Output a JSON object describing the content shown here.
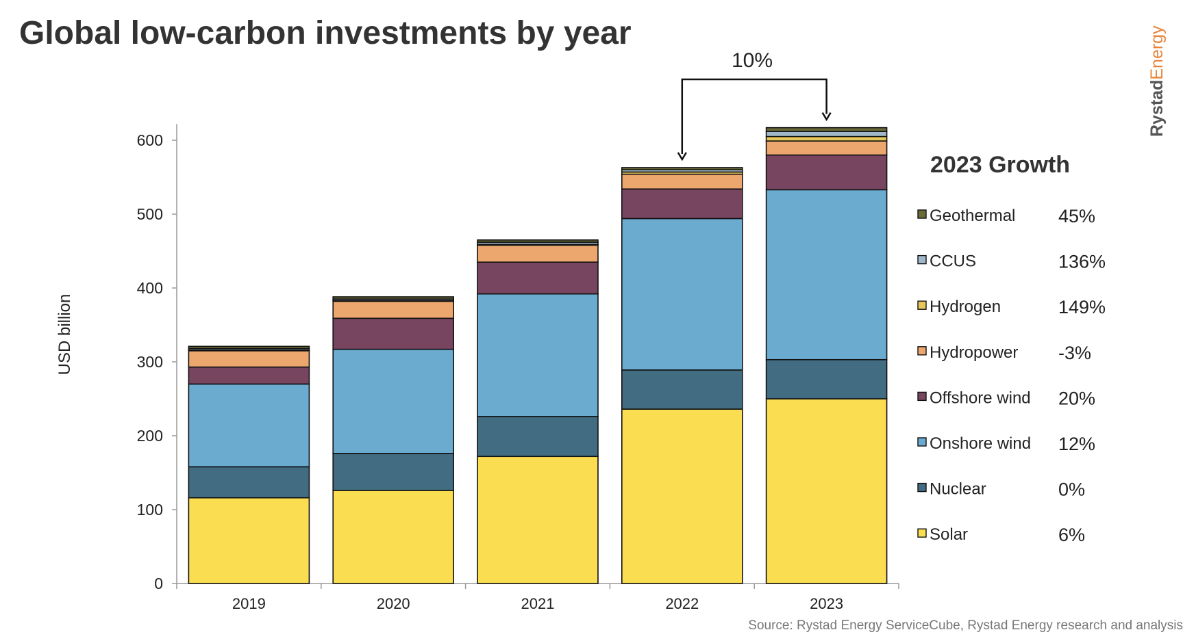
{
  "title": "Global low-carbon investments by year",
  "brand": {
    "part1": "Rystad",
    "part2": "Energy"
  },
  "source": "Source: Rystad Energy ServiceCube, Rystad Energy research and analysis",
  "growth_callout": {
    "label": "10%",
    "from": "2022",
    "to": "2023"
  },
  "legend_title": "2023 Growth",
  "colors": {
    "Solar": "#fbdd52",
    "Nuclear": "#426c82",
    "Onshore wind": "#6aabcf",
    "Offshore wind": "#77455f",
    "Hydropower": "#eca76f",
    "Hydrogen": "#e8c75a",
    "CCUS": "#a0b8c8",
    "Geothermal": "#6b6b3a"
  },
  "chart_data": {
    "type": "bar",
    "stacked": true,
    "categories": [
      "2019",
      "2020",
      "2021",
      "2022",
      "2023"
    ],
    "ylabel": "USD billion",
    "xlabel": "",
    "ylim": [
      0,
      620
    ],
    "yticks": [
      0,
      100,
      200,
      300,
      400,
      500,
      600
    ],
    "grid": false,
    "legend_position": "right",
    "series": [
      {
        "name": "Solar",
        "values": [
          116,
          126,
          172,
          236,
          250
        ],
        "growth_2023": "6%"
      },
      {
        "name": "Nuclear",
        "values": [
          42,
          50,
          54,
          53,
          53
        ],
        "growth_2023": "0%"
      },
      {
        "name": "Onshore wind",
        "values": [
          112,
          141,
          166,
          205,
          230
        ],
        "growth_2023": "12%"
      },
      {
        "name": "Offshore wind",
        "values": [
          23,
          42,
          43,
          40,
          47
        ],
        "growth_2023": "20%"
      },
      {
        "name": "Hydropower",
        "values": [
          22,
          23,
          23,
          20,
          19
        ],
        "growth_2023": "-3%"
      },
      {
        "name": "Hydrogen",
        "values": [
          1,
          1,
          1,
          3,
          6
        ],
        "growth_2023": "149%"
      },
      {
        "name": "CCUS",
        "values": [
          2,
          2,
          3,
          3,
          7
        ],
        "growth_2023": "136%"
      },
      {
        "name": "Geothermal",
        "values": [
          3,
          3,
          3,
          3,
          5
        ],
        "growth_2023": "45%"
      }
    ]
  }
}
